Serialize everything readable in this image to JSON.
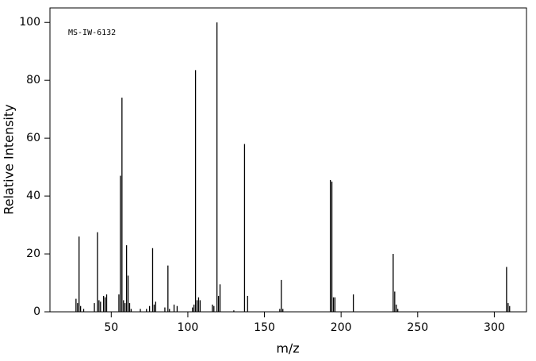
{
  "chart_data": {
    "type": "bar",
    "annotation": "MS-IW-6132",
    "xlabel": "m/z",
    "ylabel": "Relative Intensity",
    "color": "#000000",
    "xlim": [
      10,
      321
    ],
    "ylim": [
      0,
      105
    ],
    "xticks": [
      50,
      100,
      150,
      200,
      250,
      300
    ],
    "yticks": [
      0,
      20,
      40,
      60,
      80,
      100
    ],
    "x": [
      27,
      28,
      29,
      30,
      32,
      39,
      41,
      42,
      43,
      45,
      46,
      47,
      55,
      56,
      57,
      58,
      59,
      60,
      61,
      62,
      63,
      69,
      73,
      75,
      77,
      78,
      79,
      85,
      87,
      88,
      91,
      93,
      103,
      104,
      105,
      106,
      107,
      108,
      116,
      117,
      119,
      120,
      121,
      130,
      137,
      139,
      160,
      161,
      162,
      193,
      194,
      195,
      196,
      208,
      234,
      235,
      236,
      237,
      308,
      309,
      310
    ],
    "values": [
      4.5,
      3,
      26,
      2,
      1,
      3,
      27.5,
      4,
      3.5,
      5.5,
      5,
      6,
      6,
      47,
      74,
      4,
      3,
      23,
      12.5,
      3,
      1,
      1,
      1,
      2,
      22,
      2.5,
      3.5,
      1.5,
      16,
      1,
      2.5,
      2,
      1.5,
      2.5,
      83.5,
      4,
      5,
      4,
      2.5,
      2,
      100,
      5.5,
      9.5,
      0.5,
      58,
      5.5,
      1,
      11,
      1,
      45.5,
      45,
      5,
      5,
      6,
      20,
      7,
      2.5,
      1,
      15.5,
      3,
      2
    ]
  }
}
